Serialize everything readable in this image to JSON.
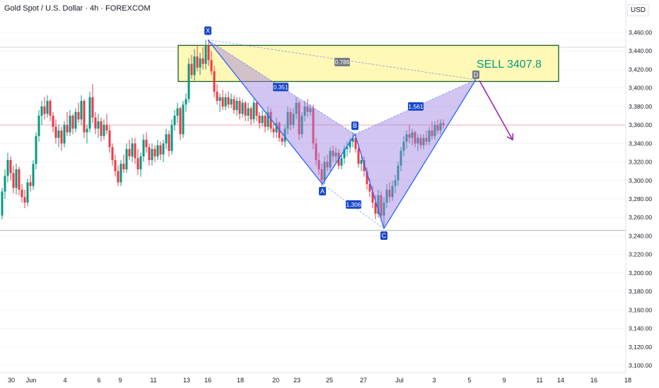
{
  "header": {
    "title": "Gold Spot / U.S. Dollar · 4h · FOREXCOM",
    "currency": "USD"
  },
  "colors": {
    "up": "#089981",
    "down": "#f23645",
    "pattern_fill": "#9c7fe0",
    "pattern_stroke": "#2962ff",
    "zone_fill": "#fff59d",
    "zone_border": "#1b5e20",
    "arrow": "#9c27b0",
    "label_bg": "#1848cc"
  },
  "chart_data": {
    "type": "candlestick",
    "title": "Gold Spot / U.S. Dollar · 4h · FOREXCOM",
    "ylim": [
      3100,
      3460
    ],
    "y_ticks": [
      "3,460.00",
      "3,440.00",
      "3,420.00",
      "3,400.00",
      "3,380.00",
      "3,360.00",
      "3,340.00",
      "3,320.00",
      "3,300.00",
      "3,280.00",
      "3,260.00",
      "3,240.00",
      "3,220.00",
      "3,200.00",
      "3,180.00",
      "3,160.00",
      "3,140.00",
      "3,120.00",
      "3,100.00"
    ],
    "x_ticks": [
      "30",
      "Jun",
      "4",
      "6",
      "9",
      "11",
      "13",
      "16",
      "18",
      "20",
      "23",
      "25",
      "27",
      "Jul",
      "3",
      "5",
      "9",
      "11",
      "14",
      "16",
      "18"
    ],
    "x_tick_positions": [
      16,
      44,
      92,
      140,
      170,
      217,
      264,
      294,
      340,
      390,
      420,
      466,
      514,
      565,
      614,
      664,
      713,
      763,
      793,
      840,
      888
    ],
    "candles": [
      {
        "x": 3,
        "o": 3262,
        "h": 3292,
        "l": 3258,
        "c": 3288
      },
      {
        "x": 7,
        "o": 3288,
        "h": 3312,
        "l": 3280,
        "c": 3305
      },
      {
        "x": 11,
        "o": 3305,
        "h": 3330,
        "l": 3298,
        "c": 3322
      },
      {
        "x": 15,
        "o": 3322,
        "h": 3326,
        "l": 3300,
        "c": 3308
      },
      {
        "x": 19,
        "o": 3308,
        "h": 3316,
        "l": 3286,
        "c": 3292
      },
      {
        "x": 23,
        "o": 3292,
        "h": 3318,
        "l": 3285,
        "c": 3312
      },
      {
        "x": 27,
        "o": 3312,
        "h": 3315,
        "l": 3284,
        "c": 3290
      },
      {
        "x": 31,
        "o": 3290,
        "h": 3296,
        "l": 3276,
        "c": 3282
      },
      {
        "x": 35,
        "o": 3282,
        "h": 3290,
        "l": 3270,
        "c": 3276
      },
      {
        "x": 39,
        "o": 3276,
        "h": 3302,
        "l": 3272,
        "c": 3298
      },
      {
        "x": 43,
        "o": 3298,
        "h": 3306,
        "l": 3288,
        "c": 3294
      },
      {
        "x": 47,
        "o": 3294,
        "h": 3322,
        "l": 3290,
        "c": 3318
      },
      {
        "x": 51,
        "o": 3318,
        "h": 3352,
        "l": 3312,
        "c": 3348
      },
      {
        "x": 55,
        "o": 3348,
        "h": 3376,
        "l": 3342,
        "c": 3370
      },
      {
        "x": 59,
        "o": 3370,
        "h": 3386,
        "l": 3360,
        "c": 3380
      },
      {
        "x": 63,
        "o": 3380,
        "h": 3390,
        "l": 3366,
        "c": 3372
      },
      {
        "x": 67,
        "o": 3372,
        "h": 3392,
        "l": 3368,
        "c": 3386
      },
      {
        "x": 71,
        "o": 3386,
        "h": 3388,
        "l": 3364,
        "c": 3370
      },
      {
        "x": 75,
        "o": 3370,
        "h": 3374,
        "l": 3352,
        "c": 3358
      },
      {
        "x": 79,
        "o": 3358,
        "h": 3366,
        "l": 3340,
        "c": 3346
      },
      {
        "x": 83,
        "o": 3346,
        "h": 3360,
        "l": 3336,
        "c": 3354
      },
      {
        "x": 87,
        "o": 3354,
        "h": 3358,
        "l": 3332,
        "c": 3340
      },
      {
        "x": 91,
        "o": 3340,
        "h": 3364,
        "l": 3336,
        "c": 3360
      },
      {
        "x": 95,
        "o": 3360,
        "h": 3374,
        "l": 3348,
        "c": 3352
      },
      {
        "x": 99,
        "o": 3352,
        "h": 3376,
        "l": 3348,
        "c": 3370
      },
      {
        "x": 103,
        "o": 3370,
        "h": 3372,
        "l": 3350,
        "c": 3356
      },
      {
        "x": 107,
        "o": 3356,
        "h": 3378,
        "l": 3352,
        "c": 3374
      },
      {
        "x": 111,
        "o": 3374,
        "h": 3384,
        "l": 3362,
        "c": 3366
      },
      {
        "x": 115,
        "o": 3366,
        "h": 3392,
        "l": 3360,
        "c": 3386
      },
      {
        "x": 119,
        "o": 3386,
        "h": 3388,
        "l": 3346,
        "c": 3352
      },
      {
        "x": 123,
        "o": 3352,
        "h": 3360,
        "l": 3340,
        "c": 3356
      },
      {
        "x": 127,
        "o": 3356,
        "h": 3396,
        "l": 3352,
        "c": 3390
      },
      {
        "x": 131,
        "o": 3390,
        "h": 3404,
        "l": 3362,
        "c": 3368
      },
      {
        "x": 135,
        "o": 3368,
        "h": 3374,
        "l": 3350,
        "c": 3356
      },
      {
        "x": 139,
        "o": 3356,
        "h": 3372,
        "l": 3346,
        "c": 3364
      },
      {
        "x": 143,
        "o": 3364,
        "h": 3368,
        "l": 3342,
        "c": 3348
      },
      {
        "x": 147,
        "o": 3348,
        "h": 3366,
        "l": 3344,
        "c": 3360
      },
      {
        "x": 151,
        "o": 3360,
        "h": 3372,
        "l": 3350,
        "c": 3354
      },
      {
        "x": 155,
        "o": 3354,
        "h": 3360,
        "l": 3330,
        "c": 3336
      },
      {
        "x": 159,
        "o": 3336,
        "h": 3340,
        "l": 3316,
        "c": 3322
      },
      {
        "x": 163,
        "o": 3322,
        "h": 3328,
        "l": 3304,
        "c": 3310
      },
      {
        "x": 167,
        "o": 3310,
        "h": 3316,
        "l": 3294,
        "c": 3298
      },
      {
        "x": 171,
        "o": 3298,
        "h": 3322,
        "l": 3294,
        "c": 3318
      },
      {
        "x": 175,
        "o": 3318,
        "h": 3328,
        "l": 3308,
        "c": 3312
      },
      {
        "x": 179,
        "o": 3312,
        "h": 3340,
        "l": 3308,
        "c": 3334
      },
      {
        "x": 183,
        "o": 3334,
        "h": 3344,
        "l": 3322,
        "c": 3326
      },
      {
        "x": 187,
        "o": 3326,
        "h": 3346,
        "l": 3320,
        "c": 3340
      },
      {
        "x": 191,
        "o": 3340,
        "h": 3346,
        "l": 3318,
        "c": 3324
      },
      {
        "x": 195,
        "o": 3324,
        "h": 3334,
        "l": 3306,
        "c": 3312
      },
      {
        "x": 199,
        "o": 3312,
        "h": 3330,
        "l": 3304,
        "c": 3326
      },
      {
        "x": 203,
        "o": 3326,
        "h": 3350,
        "l": 3320,
        "c": 3344
      },
      {
        "x": 207,
        "o": 3344,
        "h": 3352,
        "l": 3330,
        "c": 3336
      },
      {
        "x": 211,
        "o": 3336,
        "h": 3340,
        "l": 3316,
        "c": 3322
      },
      {
        "x": 215,
        "o": 3322,
        "h": 3340,
        "l": 3316,
        "c": 3334
      },
      {
        "x": 219,
        "o": 3334,
        "h": 3338,
        "l": 3320,
        "c": 3326
      },
      {
        "x": 223,
        "o": 3326,
        "h": 3344,
        "l": 3322,
        "c": 3338
      },
      {
        "x": 227,
        "o": 3338,
        "h": 3342,
        "l": 3322,
        "c": 3328
      },
      {
        "x": 231,
        "o": 3328,
        "h": 3344,
        "l": 3320,
        "c": 3340
      },
      {
        "x": 235,
        "o": 3340,
        "h": 3356,
        "l": 3334,
        "c": 3350
      },
      {
        "x": 239,
        "o": 3350,
        "h": 3354,
        "l": 3326,
        "c": 3332
      },
      {
        "x": 243,
        "o": 3332,
        "h": 3366,
        "l": 3328,
        "c": 3360
      },
      {
        "x": 247,
        "o": 3360,
        "h": 3376,
        "l": 3354,
        "c": 3370
      },
      {
        "x": 251,
        "o": 3370,
        "h": 3384,
        "l": 3362,
        "c": 3378
      },
      {
        "x": 255,
        "o": 3378,
        "h": 3380,
        "l": 3344,
        "c": 3350
      },
      {
        "x": 259,
        "o": 3350,
        "h": 3386,
        "l": 3346,
        "c": 3382
      },
      {
        "x": 263,
        "o": 3382,
        "h": 3394,
        "l": 3374,
        "c": 3388
      },
      {
        "x": 267,
        "o": 3388,
        "h": 3432,
        "l": 3384,
        "c": 3426
      },
      {
        "x": 271,
        "o": 3426,
        "h": 3436,
        "l": 3410,
        "c": 3414
      },
      {
        "x": 275,
        "o": 3414,
        "h": 3442,
        "l": 3408,
        "c": 3434
      },
      {
        "x": 279,
        "o": 3434,
        "h": 3446,
        "l": 3418,
        "c": 3422
      },
      {
        "x": 283,
        "o": 3422,
        "h": 3438,
        "l": 3414,
        "c": 3432
      },
      {
        "x": 287,
        "o": 3432,
        "h": 3444,
        "l": 3420,
        "c": 3426
      },
      {
        "x": 291,
        "o": 3426,
        "h": 3452,
        "l": 3420,
        "c": 3446
      },
      {
        "x": 295,
        "o": 3446,
        "h": 3452,
        "l": 3424,
        "c": 3430
      },
      {
        "x": 299,
        "o": 3430,
        "h": 3440,
        "l": 3414,
        "c": 3418
      },
      {
        "x": 303,
        "o": 3418,
        "h": 3424,
        "l": 3390,
        "c": 3396
      },
      {
        "x": 307,
        "o": 3396,
        "h": 3404,
        "l": 3382,
        "c": 3386
      },
      {
        "x": 311,
        "o": 3386,
        "h": 3394,
        "l": 3374,
        "c": 3390
      },
      {
        "x": 315,
        "o": 3390,
        "h": 3398,
        "l": 3376,
        "c": 3380
      },
      {
        "x": 319,
        "o": 3380,
        "h": 3394,
        "l": 3376,
        "c": 3390
      },
      {
        "x": 323,
        "o": 3390,
        "h": 3396,
        "l": 3378,
        "c": 3382
      },
      {
        "x": 327,
        "o": 3382,
        "h": 3394,
        "l": 3378,
        "c": 3388
      },
      {
        "x": 331,
        "o": 3388,
        "h": 3392,
        "l": 3372,
        "c": 3376
      },
      {
        "x": 335,
        "o": 3376,
        "h": 3390,
        "l": 3370,
        "c": 3386
      },
      {
        "x": 339,
        "o": 3386,
        "h": 3390,
        "l": 3366,
        "c": 3372
      },
      {
        "x": 343,
        "o": 3372,
        "h": 3388,
        "l": 3368,
        "c": 3384
      },
      {
        "x": 347,
        "o": 3384,
        "h": 3386,
        "l": 3364,
        "c": 3370
      },
      {
        "x": 351,
        "o": 3370,
        "h": 3384,
        "l": 3364,
        "c": 3378
      },
      {
        "x": 355,
        "o": 3378,
        "h": 3380,
        "l": 3360,
        "c": 3366
      },
      {
        "x": 359,
        "o": 3366,
        "h": 3388,
        "l": 3362,
        "c": 3384
      },
      {
        "x": 363,
        "o": 3384,
        "h": 3386,
        "l": 3364,
        "c": 3370
      },
      {
        "x": 367,
        "o": 3370,
        "h": 3374,
        "l": 3356,
        "c": 3362
      },
      {
        "x": 371,
        "o": 3362,
        "h": 3376,
        "l": 3358,
        "c": 3370
      },
      {
        "x": 375,
        "o": 3370,
        "h": 3372,
        "l": 3352,
        "c": 3358
      },
      {
        "x": 379,
        "o": 3358,
        "h": 3380,
        "l": 3354,
        "c": 3374
      },
      {
        "x": 383,
        "o": 3374,
        "h": 3378,
        "l": 3352,
        "c": 3356
      },
      {
        "x": 387,
        "o": 3356,
        "h": 3362,
        "l": 3346,
        "c": 3352
      },
      {
        "x": 391,
        "o": 3352,
        "h": 3368,
        "l": 3346,
        "c": 3362
      },
      {
        "x": 395,
        "o": 3362,
        "h": 3364,
        "l": 3342,
        "c": 3346
      },
      {
        "x": 399,
        "o": 3346,
        "h": 3352,
        "l": 3338,
        "c": 3342
      },
      {
        "x": 403,
        "o": 3342,
        "h": 3360,
        "l": 3336,
        "c": 3356
      },
      {
        "x": 407,
        "o": 3356,
        "h": 3380,
        "l": 3350,
        "c": 3374
      },
      {
        "x": 411,
        "o": 3374,
        "h": 3378,
        "l": 3354,
        "c": 3360
      },
      {
        "x": 415,
        "o": 3360,
        "h": 3378,
        "l": 3356,
        "c": 3372
      },
      {
        "x": 419,
        "o": 3372,
        "h": 3390,
        "l": 3366,
        "c": 3384
      },
      {
        "x": 423,
        "o": 3384,
        "h": 3386,
        "l": 3344,
        "c": 3350
      },
      {
        "x": 427,
        "o": 3350,
        "h": 3374,
        "l": 3346,
        "c": 3370
      },
      {
        "x": 431,
        "o": 3370,
        "h": 3386,
        "l": 3364,
        "c": 3380
      },
      {
        "x": 435,
        "o": 3380,
        "h": 3388,
        "l": 3368,
        "c": 3374
      },
      {
        "x": 439,
        "o": 3374,
        "h": 3382,
        "l": 3370,
        "c": 3378
      },
      {
        "x": 443,
        "o": 3378,
        "h": 3382,
        "l": 3334,
        "c": 3340
      },
      {
        "x": 447,
        "o": 3340,
        "h": 3346,
        "l": 3316,
        "c": 3322
      },
      {
        "x": 451,
        "o": 3322,
        "h": 3330,
        "l": 3306,
        "c": 3312
      },
      {
        "x": 455,
        "o": 3312,
        "h": 3318,
        "l": 3294,
        "c": 3300
      },
      {
        "x": 459,
        "o": 3300,
        "h": 3326,
        "l": 3296,
        "c": 3320
      },
      {
        "x": 463,
        "o": 3320,
        "h": 3328,
        "l": 3310,
        "c": 3314
      },
      {
        "x": 467,
        "o": 3314,
        "h": 3336,
        "l": 3310,
        "c": 3332
      },
      {
        "x": 471,
        "o": 3332,
        "h": 3338,
        "l": 3320,
        "c": 3326
      },
      {
        "x": 475,
        "o": 3326,
        "h": 3336,
        "l": 3320,
        "c": 3330
      },
      {
        "x": 479,
        "o": 3330,
        "h": 3334,
        "l": 3312,
        "c": 3316
      },
      {
        "x": 483,
        "o": 3316,
        "h": 3328,
        "l": 3312,
        "c": 3324
      },
      {
        "x": 487,
        "o": 3324,
        "h": 3338,
        "l": 3318,
        "c": 3334
      },
      {
        "x": 491,
        "o": 3334,
        "h": 3342,
        "l": 3326,
        "c": 3336
      },
      {
        "x": 495,
        "o": 3336,
        "h": 3346,
        "l": 3330,
        "c": 3342
      },
      {
        "x": 499,
        "o": 3342,
        "h": 3352,
        "l": 3336,
        "c": 3346
      },
      {
        "x": 503,
        "o": 3346,
        "h": 3350,
        "l": 3330,
        "c": 3334
      },
      {
        "x": 507,
        "o": 3334,
        "h": 3338,
        "l": 3314,
        "c": 3318
      },
      {
        "x": 511,
        "o": 3318,
        "h": 3328,
        "l": 3310,
        "c": 3322
      },
      {
        "x": 515,
        "o": 3322,
        "h": 3326,
        "l": 3304,
        "c": 3310
      },
      {
        "x": 519,
        "o": 3310,
        "h": 3314,
        "l": 3290,
        "c": 3296
      },
      {
        "x": 523,
        "o": 3296,
        "h": 3302,
        "l": 3282,
        "c": 3288
      },
      {
        "x": 527,
        "o": 3288,
        "h": 3294,
        "l": 3270,
        "c": 3276
      },
      {
        "x": 531,
        "o": 3276,
        "h": 3284,
        "l": 3258,
        "c": 3264
      },
      {
        "x": 535,
        "o": 3264,
        "h": 3290,
        "l": 3260,
        "c": 3284
      },
      {
        "x": 539,
        "o": 3284,
        "h": 3288,
        "l": 3256,
        "c": 3262
      },
      {
        "x": 543,
        "o": 3262,
        "h": 3282,
        "l": 3248,
        "c": 3276
      },
      {
        "x": 547,
        "o": 3276,
        "h": 3296,
        "l": 3270,
        "c": 3290
      },
      {
        "x": 551,
        "o": 3290,
        "h": 3298,
        "l": 3276,
        "c": 3282
      },
      {
        "x": 555,
        "o": 3282,
        "h": 3300,
        "l": 3278,
        "c": 3294
      },
      {
        "x": 559,
        "o": 3294,
        "h": 3306,
        "l": 3286,
        "c": 3300
      },
      {
        "x": 563,
        "o": 3300,
        "h": 3320,
        "l": 3294,
        "c": 3316
      },
      {
        "x": 567,
        "o": 3316,
        "h": 3336,
        "l": 3310,
        "c": 3332
      },
      {
        "x": 571,
        "o": 3332,
        "h": 3348,
        "l": 3326,
        "c": 3342
      },
      {
        "x": 575,
        "o": 3342,
        "h": 3354,
        "l": 3334,
        "c": 3350
      },
      {
        "x": 579,
        "o": 3350,
        "h": 3360,
        "l": 3340,
        "c": 3346
      },
      {
        "x": 583,
        "o": 3346,
        "h": 3356,
        "l": 3338,
        "c": 3352
      },
      {
        "x": 587,
        "o": 3352,
        "h": 3354,
        "l": 3336,
        "c": 3340
      },
      {
        "x": 591,
        "o": 3340,
        "h": 3350,
        "l": 3332,
        "c": 3346
      },
      {
        "x": 595,
        "o": 3346,
        "h": 3350,
        "l": 3334,
        "c": 3338
      },
      {
        "x": 599,
        "o": 3338,
        "h": 3350,
        "l": 3334,
        "c": 3346
      },
      {
        "x": 603,
        "o": 3346,
        "h": 3354,
        "l": 3338,
        "c": 3342
      },
      {
        "x": 607,
        "o": 3342,
        "h": 3358,
        "l": 3338,
        "c": 3354
      },
      {
        "x": 611,
        "o": 3354,
        "h": 3364,
        "l": 3344,
        "c": 3348
      },
      {
        "x": 615,
        "o": 3348,
        "h": 3364,
        "l": 3344,
        "c": 3360
      },
      {
        "x": 619,
        "o": 3360,
        "h": 3366,
        "l": 3350,
        "c": 3354
      },
      {
        "x": 623,
        "o": 3354,
        "h": 3366,
        "l": 3350,
        "c": 3362
      },
      {
        "x": 627,
        "o": 3362,
        "h": 3366,
        "l": 3356,
        "c": 3360
      }
    ],
    "current_price": 3360,
    "support_level": 3246,
    "pattern": {
      "points": [
        {
          "label": "X",
          "x": 294,
          "y": 3452
        },
        {
          "label": "A",
          "x": 456,
          "y": 3296
        },
        {
          "label": "B",
          "x": 502,
          "y": 3350
        },
        {
          "label": "C",
          "x": 543,
          "y": 3248
        },
        {
          "label": "D",
          "x": 673,
          "y": 3409
        }
      ],
      "ratios": [
        {
          "text": "0.786",
          "x": 484,
          "y": 3428
        },
        {
          "text": "0.351",
          "x": 397,
          "y": 3401
        },
        {
          "text": "1.306",
          "x": 500,
          "y": 3274
        },
        {
          "text": "1.561",
          "x": 588,
          "y": 3380
        }
      ]
    },
    "sell_zone": {
      "x_start": 252,
      "x_end": 790,
      "y_top": 3446,
      "y_bottom": 3407
    },
    "annotation": "SELL 3407.8",
    "projection": {
      "x1": 678,
      "y1": 3408,
      "x2": 725,
      "y2": 3344
    }
  }
}
